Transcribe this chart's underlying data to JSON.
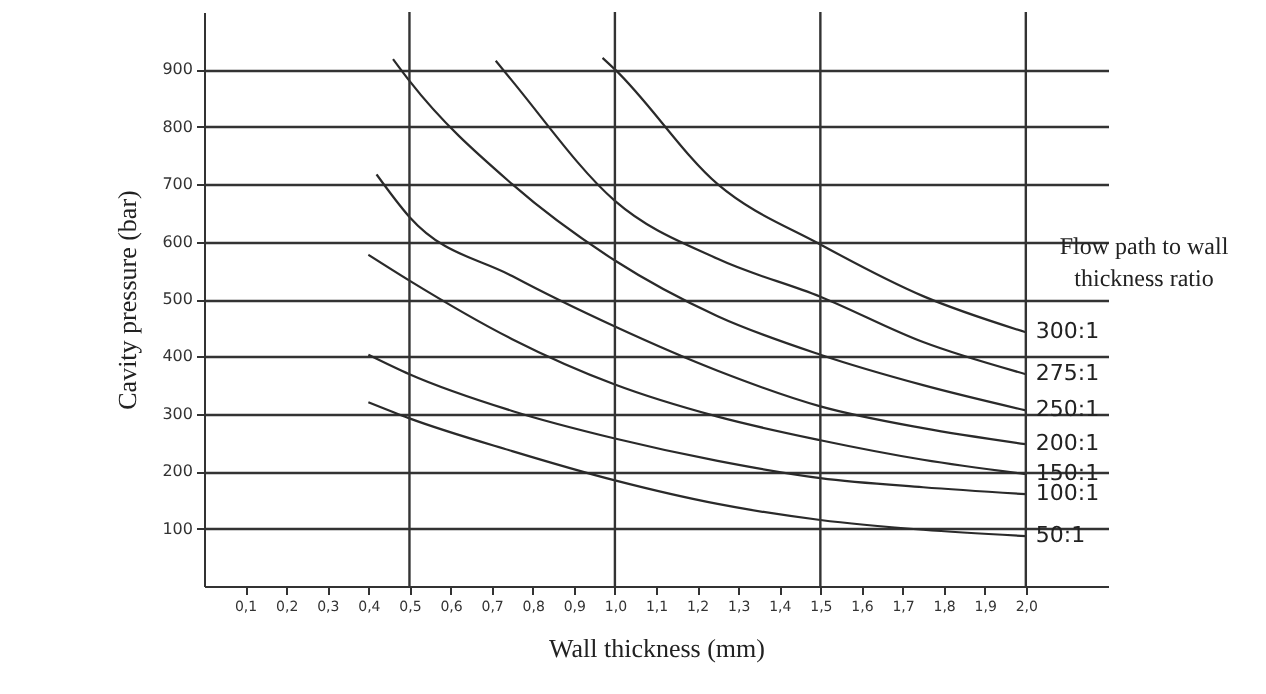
{
  "chart_data": {
    "type": "line",
    "xlabel": "Wall thickness (mm)",
    "ylabel": "Cavity pressure (bar)",
    "legend_title": "Flow path to wall thickness ratio",
    "xlim": [
      0,
      2.2
    ],
    "ylim": [
      0,
      1000
    ],
    "xticks": [
      {
        "value": 0.1,
        "label": "0,1"
      },
      {
        "value": 0.2,
        "label": "0,2"
      },
      {
        "value": 0.3,
        "label": "0,3"
      },
      {
        "value": 0.4,
        "label": "0,4"
      },
      {
        "value": 0.5,
        "label": "0,5"
      },
      {
        "value": 0.6,
        "label": "0,6"
      },
      {
        "value": 0.7,
        "label": "0,7"
      },
      {
        "value": 0.8,
        "label": "0,8"
      },
      {
        "value": 0.9,
        "label": "0,9"
      },
      {
        "value": 1.0,
        "label": "1,0"
      },
      {
        "value": 1.1,
        "label": "1,1"
      },
      {
        "value": 1.2,
        "label": "1,2"
      },
      {
        "value": 1.3,
        "label": "1,3"
      },
      {
        "value": 1.4,
        "label": "1,4"
      },
      {
        "value": 1.5,
        "label": "1,5"
      },
      {
        "value": 1.6,
        "label": "1,6"
      },
      {
        "value": 1.7,
        "label": "1,7"
      },
      {
        "value": 1.8,
        "label": "1,8"
      },
      {
        "value": 1.9,
        "label": "1,9"
      },
      {
        "value": 2.0,
        "label": "2,0"
      }
    ],
    "yticks": [
      100,
      200,
      300,
      400,
      500,
      600,
      700,
      800,
      900
    ],
    "grid": "y",
    "legend": false,
    "marker": "none",
    "line_style": "solid",
    "ref_lines": [
      {
        "axis": "x",
        "value": 0.5
      },
      {
        "axis": "x",
        "value": 1.0
      },
      {
        "axis": "x",
        "value": 1.5
      },
      {
        "axis": "x",
        "value": 2.0
      }
    ],
    "series": [
      {
        "name": "300:1",
        "color": "#2a2a2a",
        "x": [
          0.97,
          1.0,
          1.25,
          1.5,
          1.75,
          2.0
        ],
        "values": [
          920,
          900,
          700,
          595,
          505,
          442
        ]
      },
      {
        "name": "275:1",
        "color": "#2a2a2a",
        "x": [
          0.71,
          0.75,
          1.0,
          1.25,
          1.5,
          1.75,
          2.0
        ],
        "values": [
          915,
          880,
          671,
          570,
          504,
          425,
          369
        ]
      },
      {
        "name": "250:1",
        "color": "#2a2a2a",
        "x": [
          0.46,
          0.5,
          0.75,
          1.0,
          1.25,
          1.5,
          1.75,
          2.0
        ],
        "values": [
          918,
          880,
          700,
          567,
          470,
          403,
          350,
          306
        ]
      },
      {
        "name": "200:1",
        "color": "#2a2a2a",
        "x": [
          0.42,
          0.5,
          0.75,
          1.0,
          1.25,
          1.5,
          1.75,
          2.0
        ],
        "values": [
          717,
          643,
          540,
          452,
          375,
          313,
          275,
          247
        ]
      },
      {
        "name": "150:1",
        "color": "#2a2a2a",
        "x": [
          0.4,
          0.5,
          0.75,
          1.0,
          1.25,
          1.5,
          1.75,
          2.0
        ],
        "values": [
          577,
          532,
          430,
          351,
          295,
          254,
          220,
          195
        ]
      },
      {
        "name": "100:1",
        "color": "#2a2a2a",
        "x": [
          0.4,
          0.5,
          0.75,
          1.0,
          1.25,
          1.5,
          1.75,
          2.0
        ],
        "values": [
          403,
          369,
          305,
          257,
          218,
          188,
          172,
          160
        ]
      },
      {
        "name": "50:1",
        "color": "#2a2a2a",
        "x": [
          0.4,
          0.5,
          0.75,
          1.0,
          1.25,
          1.5,
          1.75,
          2.0
        ],
        "values": [
          320,
          292,
          235,
          184,
          143,
          115,
          98,
          87
        ]
      }
    ]
  }
}
